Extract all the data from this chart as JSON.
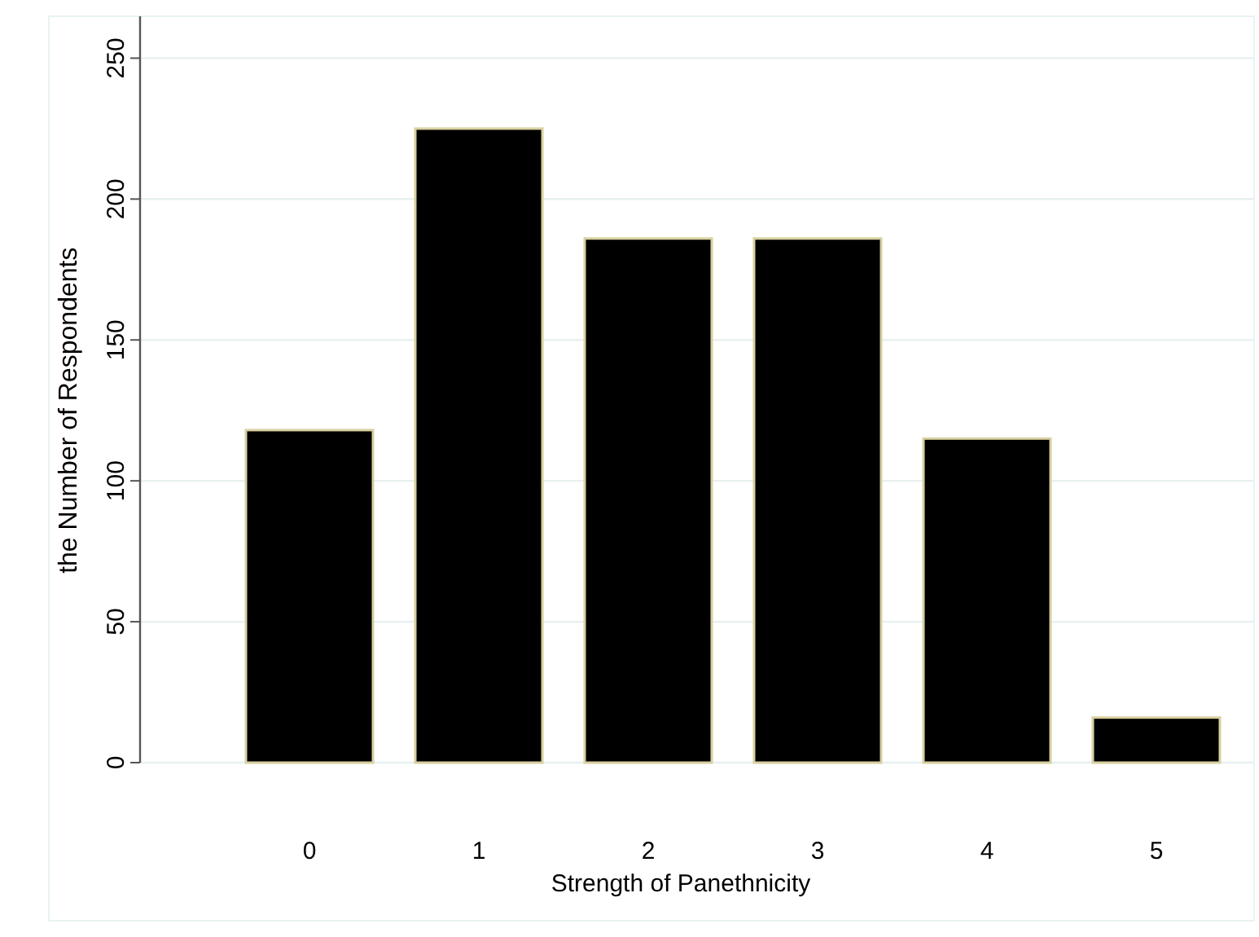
{
  "chart_data": {
    "type": "bar",
    "xlabel": "Strength of Panethnicity",
    "ylabel": "the Number of Respondents",
    "categories": [
      "0",
      "1",
      "2",
      "3",
      "4",
      "5"
    ],
    "values": [
      118,
      225,
      186,
      186,
      115,
      16
    ],
    "color": "#000000",
    "ylim": [
      0,
      250
    ],
    "yticks": [
      0,
      50,
      100,
      150,
      200,
      250
    ],
    "grid": "y"
  }
}
